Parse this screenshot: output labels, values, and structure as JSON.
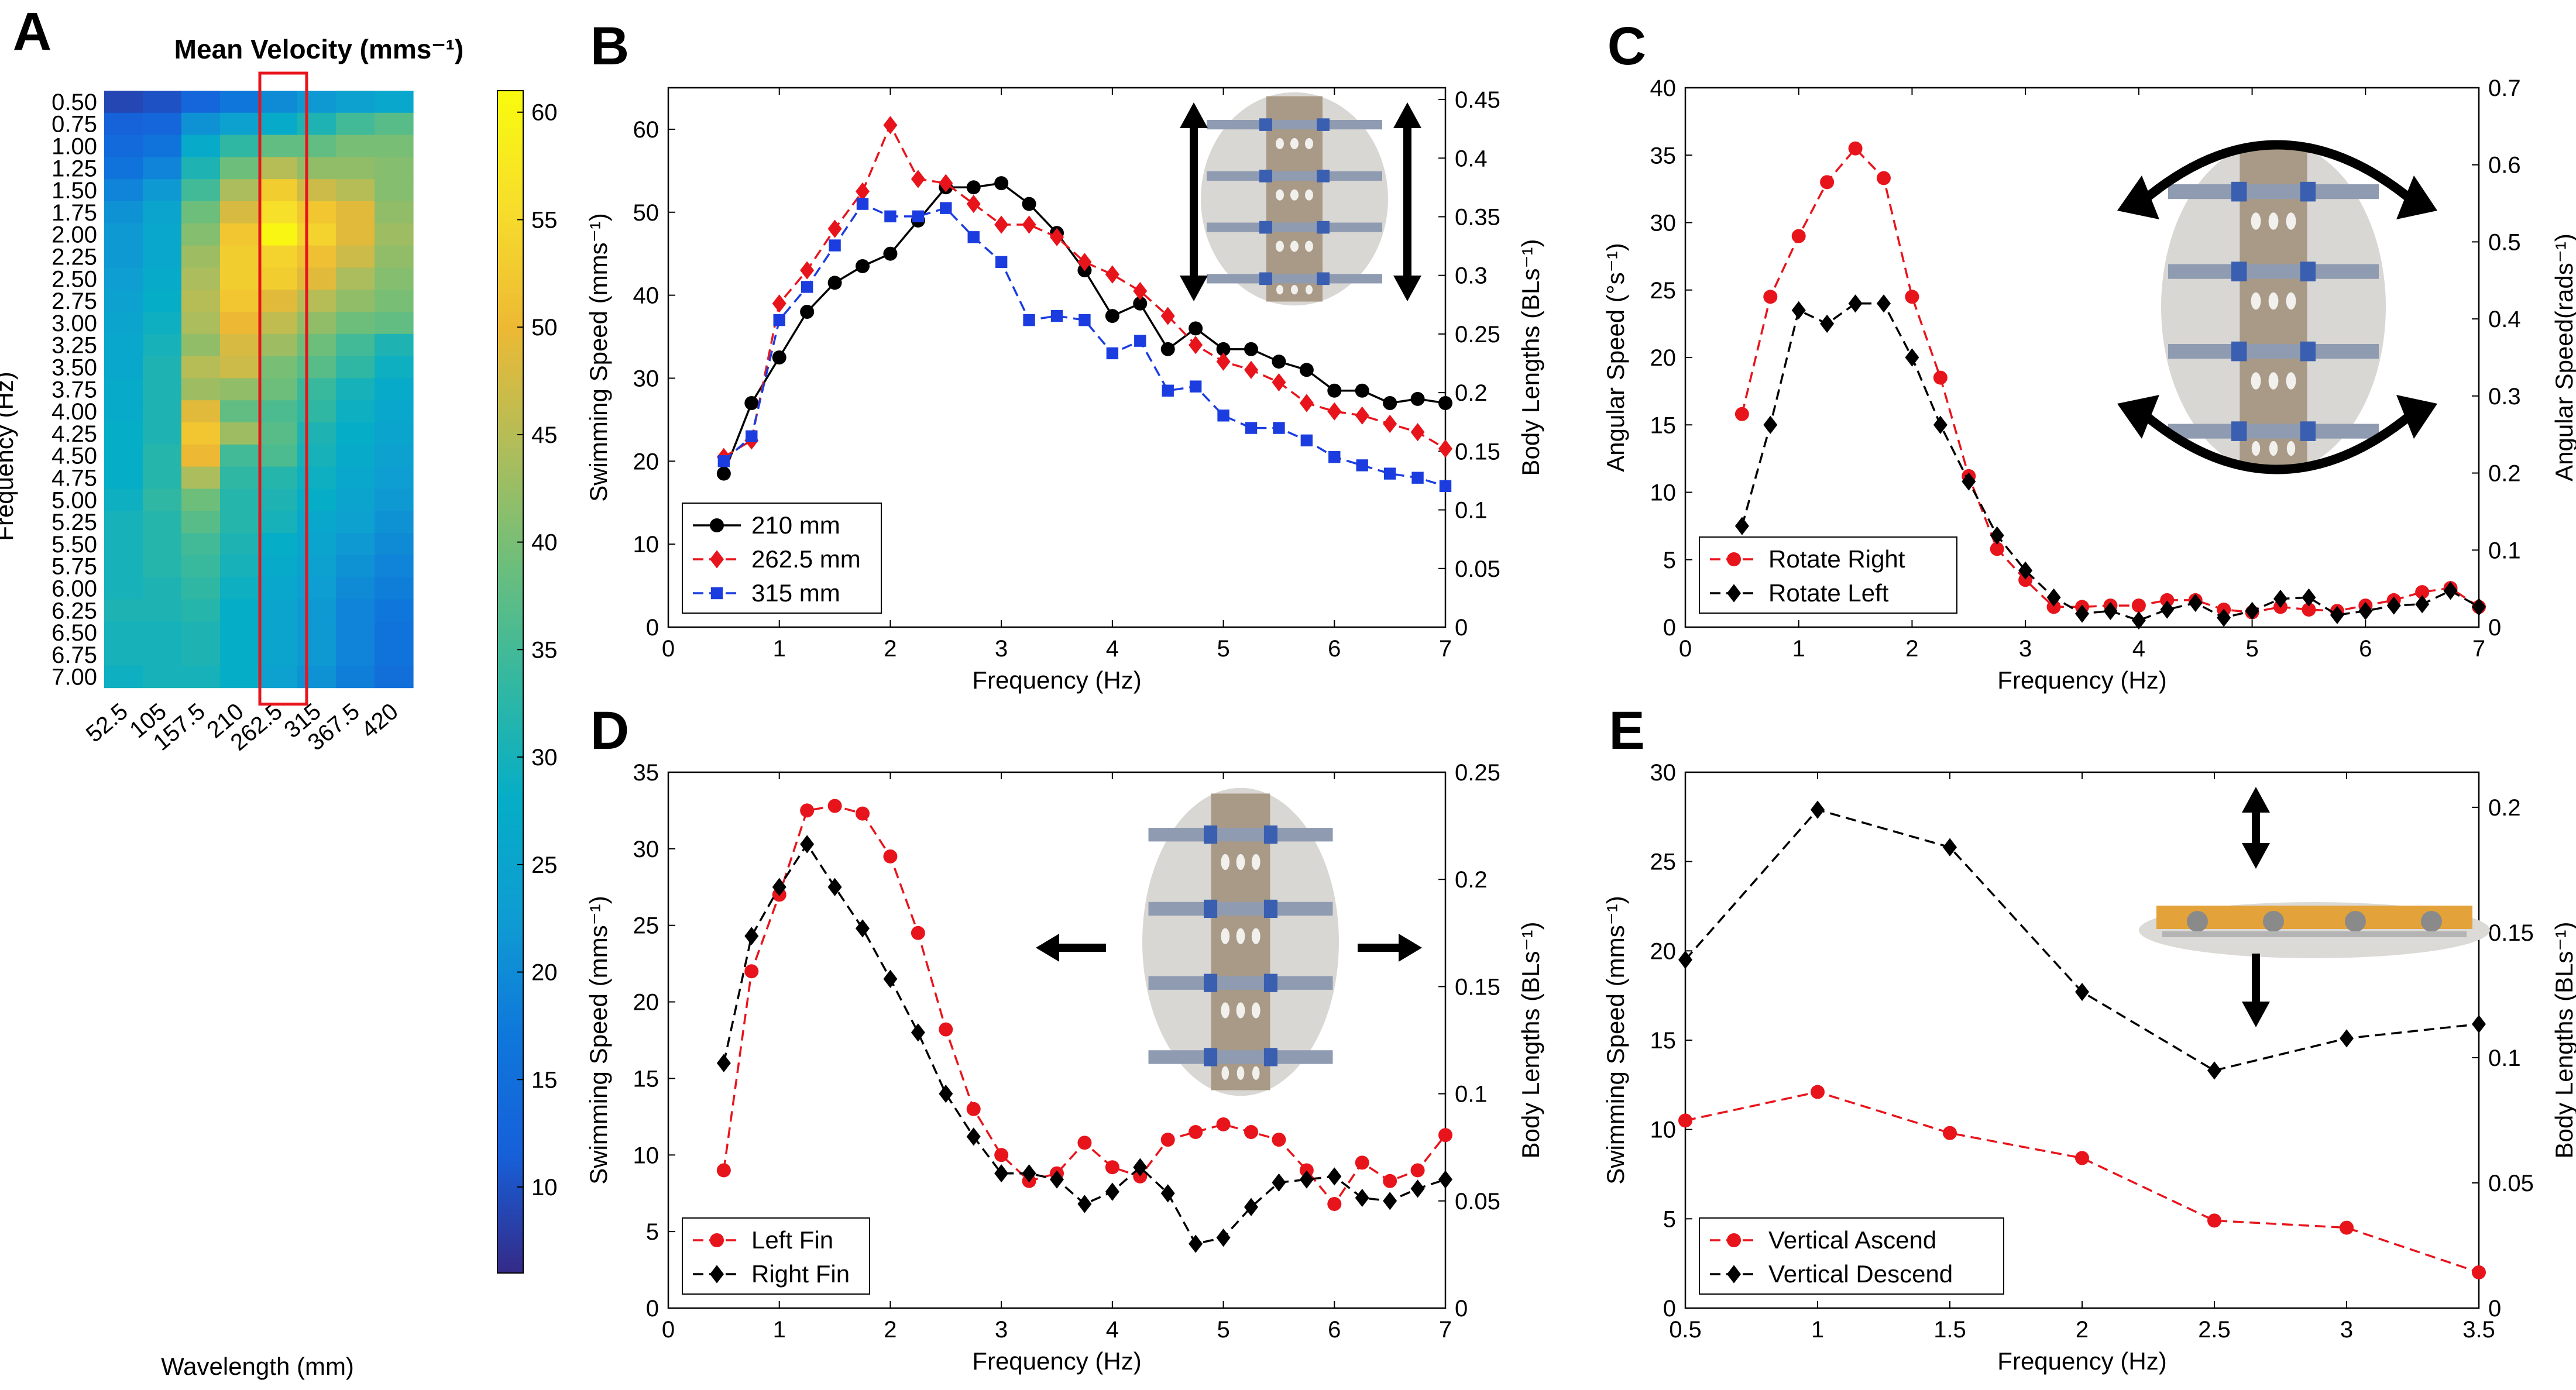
{
  "chart_data": [
    {
      "id": "A",
      "type": "heatmap",
      "panel_label": "A",
      "title": "Mean Velocity (mms⁻¹)",
      "xlabel": "Wavelength (mm)",
      "ylabel": "Frequency (Hz)",
      "x_ticks": [
        "52.5",
        "105",
        "157.5",
        "210",
        "262.5",
        "315",
        "367.5",
        "420"
      ],
      "y_ticks": [
        "0.50",
        "0.75",
        "1.00",
        "1.25",
        "1.50",
        "1.75",
        "2.00",
        "2.25",
        "2.50",
        "2.75",
        "3.00",
        "3.25",
        "3.50",
        "3.75",
        "4.00",
        "4.25",
        "4.50",
        "4.75",
        "5.00",
        "5.25",
        "5.50",
        "5.75",
        "6.00",
        "6.25",
        "6.50",
        "6.75",
        "7.00"
      ],
      "colorbar_ticks": [
        "10",
        "15",
        "20",
        "25",
        "30",
        "35",
        "40",
        "45",
        "50",
        "55",
        "60"
      ],
      "colorbar_range": [
        6,
        61
      ],
      "highlight_column": "262.5",
      "values": [
        [
          9,
          10,
          13,
          17,
          20,
          22,
          24,
          26
        ],
        [
          12,
          13,
          21,
          24,
          27,
          31,
          35,
          37
        ],
        [
          14,
          16,
          27,
          33,
          38,
          38,
          40,
          40
        ],
        [
          16,
          19,
          31,
          39,
          45,
          42,
          42,
          41
        ],
        [
          19,
          22,
          35,
          44,
          53,
          47,
          45,
          41
        ],
        [
          21,
          25,
          39,
          48,
          56,
          52,
          49,
          42
        ],
        [
          22,
          26,
          41,
          52,
          60,
          54,
          49,
          43
        ],
        [
          22,
          26,
          43,
          53,
          54,
          51,
          47,
          42
        ],
        [
          23,
          27,
          44,
          53,
          53,
          49,
          44,
          41
        ],
        [
          24,
          28,
          45,
          52,
          49,
          45,
          42,
          40
        ],
        [
          25,
          29,
          44,
          50,
          46,
          42,
          39,
          38
        ],
        [
          26,
          30,
          42,
          48,
          43,
          39,
          35,
          31
        ],
        [
          26,
          31,
          45,
          47,
          40,
          37,
          33,
          29
        ],
        [
          27,
          31,
          43,
          42,
          39,
          34,
          30,
          27
        ],
        [
          27,
          31,
          49,
          38,
          36,
          33,
          29,
          26
        ],
        [
          28,
          31,
          52,
          43,
          37,
          31,
          28,
          25
        ],
        [
          28,
          32,
          50,
          35,
          36,
          30,
          27,
          24
        ],
        [
          28,
          32,
          44,
          33,
          32,
          29,
          26,
          23
        ],
        [
          29,
          33,
          39,
          32,
          31,
          28,
          25,
          22
        ],
        [
          30,
          32,
          37,
          32,
          30,
          26,
          24,
          21
        ],
        [
          30,
          32,
          35,
          31,
          28,
          25,
          22,
          20
        ],
        [
          30,
          32,
          34,
          30,
          27,
          24,
          21,
          19
        ],
        [
          30,
          31,
          33,
          29,
          26,
          23,
          20,
          18
        ],
        [
          31,
          31,
          32,
          28,
          25,
          22,
          19,
          17
        ],
        [
          30,
          30,
          31,
          28,
          25,
          22,
          19,
          16
        ],
        [
          30,
          30,
          31,
          28,
          25,
          22,
          19,
          16
        ],
        [
          29,
          30,
          30,
          28,
          24,
          21,
          18,
          15
        ]
      ]
    },
    {
      "id": "B",
      "type": "line",
      "panel_label": "B",
      "xlabel": "Frequency (Hz)",
      "ylabel": "Swimming Speed (mms⁻¹)",
      "y2label": "Body Lengths (BLs⁻¹)",
      "xlim": [
        0,
        7
      ],
      "ylim": [
        0,
        65
      ],
      "y2lim": [
        0,
        0.46
      ],
      "x_ticks": [
        0,
        1,
        2,
        3,
        4,
        5,
        6,
        7
      ],
      "y_ticks": [
        0,
        10,
        20,
        30,
        40,
        50,
        60
      ],
      "y2_ticks": [
        "0",
        "0.05",
        "0.1",
        "0.15",
        "0.2",
        "0.25",
        "0.3",
        "0.35",
        "0.4",
        "0.45"
      ],
      "legend_position": "lower-left",
      "series": [
        {
          "name": "210 mm",
          "color": "#000000",
          "dash": false,
          "marker": "circle",
          "x": [
            0.5,
            0.75,
            1,
            1.25,
            1.5,
            1.75,
            2,
            2.25,
            2.5,
            2.75,
            3,
            3.25,
            3.5,
            3.75,
            4,
            4.25,
            4.5,
            4.75,
            5,
            5.25,
            5.5,
            5.75,
            6,
            6.25,
            6.5,
            6.75,
            7
          ],
          "y": [
            18.5,
            27,
            32.5,
            38,
            41.5,
            43.5,
            45,
            49,
            53,
            53,
            53.5,
            51,
            47.5,
            43,
            37.5,
            39,
            33.5,
            36,
            33.5,
            33.5,
            32,
            31,
            28.5,
            28.5,
            27,
            27.5,
            27
          ]
        },
        {
          "name": "262.5 mm",
          "color": "#e8141c",
          "dash": true,
          "marker": "diamond",
          "x": [
            0.5,
            0.75,
            1,
            1.25,
            1.5,
            1.75,
            2,
            2.25,
            2.5,
            2.75,
            3,
            3.25,
            3.5,
            3.75,
            4,
            4.25,
            4.5,
            4.75,
            5,
            5.25,
            5.5,
            5.75,
            6,
            6.25,
            6.5,
            6.75,
            7
          ],
          "y": [
            20.5,
            22.5,
            39,
            43,
            48,
            52.5,
            60.5,
            54,
            53.5,
            51,
            48.5,
            48.5,
            47,
            44,
            42.5,
            40.5,
            37.5,
            34,
            32,
            31,
            29.5,
            27,
            26,
            25.5,
            24.5,
            23.5,
            21.5
          ]
        },
        {
          "name": "315 mm",
          "color": "#1b3de0",
          "dash": true,
          "marker": "square",
          "x": [
            0.5,
            0.75,
            1,
            1.25,
            1.5,
            1.75,
            2,
            2.25,
            2.5,
            2.75,
            3,
            3.25,
            3.5,
            3.75,
            4,
            4.25,
            4.5,
            4.75,
            5,
            5.25,
            5.5,
            5.75,
            6,
            6.25,
            6.5,
            6.75,
            7
          ],
          "y": [
            20,
            23,
            37,
            41,
            46,
            51,
            49.5,
            49.5,
            50.5,
            47,
            44,
            37,
            37.5,
            37,
            33,
            34.5,
            28.5,
            29,
            25.5,
            24,
            24,
            22.5,
            20.5,
            19.5,
            18.5,
            18,
            17
          ]
        }
      ]
    },
    {
      "id": "C",
      "type": "line",
      "panel_label": "C",
      "xlabel": "Frequency (Hz)",
      "ylabel": "Angular Speed (°s⁻¹)",
      "y2label": "Angular Speed(rads⁻¹)",
      "xlim": [
        0,
        7
      ],
      "ylim": [
        0,
        40
      ],
      "y2lim": [
        0,
        0.7
      ],
      "x_ticks": [
        0,
        1,
        2,
        3,
        4,
        5,
        6,
        7
      ],
      "y_ticks": [
        0,
        5,
        10,
        15,
        20,
        25,
        30,
        35,
        40
      ],
      "y2_ticks": [
        "0",
        "0.1",
        "0.2",
        "0.3",
        "0.4",
        "0.5",
        "0.6",
        "0.7"
      ],
      "legend_position": "lower-left",
      "series": [
        {
          "name": "Rotate Right",
          "color": "#e8141c",
          "dash": true,
          "marker": "circle",
          "x": [
            0.5,
            0.75,
            1,
            1.25,
            1.5,
            1.75,
            2,
            2.25,
            2.5,
            2.75,
            3,
            3.25,
            3.5,
            3.75,
            4,
            4.25,
            4.5,
            4.75,
            5,
            5.25,
            5.5,
            5.75,
            6,
            6.25,
            6.5,
            6.75,
            7
          ],
          "y": [
            15.8,
            24.5,
            29,
            33,
            35.5,
            33.3,
            24.5,
            18.5,
            11.2,
            5.8,
            3.5,
            1.5,
            1.5,
            1.6,
            1.6,
            2,
            2,
            1.3,
            1.1,
            1.5,
            1.3,
            1.2,
            1.6,
            2,
            2.6,
            2.9,
            1.5
          ]
        },
        {
          "name": "Rotate Left",
          "color": "#000000",
          "dash": true,
          "marker": "diamond",
          "x": [
            0.5,
            0.75,
            1,
            1.25,
            1.5,
            1.75,
            2,
            2.25,
            2.5,
            2.75,
            3,
            3.25,
            3.5,
            3.75,
            4,
            4.25,
            4.5,
            4.75,
            5,
            5.25,
            5.5,
            5.75,
            6,
            6.25,
            6.5,
            6.75,
            7
          ],
          "y": [
            7.5,
            15,
            23.5,
            22.5,
            24,
            24,
            20,
            15,
            10.8,
            6.8,
            4.2,
            2.2,
            1,
            1.2,
            0.5,
            1.3,
            1.8,
            0.7,
            1.2,
            2.1,
            2.2,
            0.9,
            1.2,
            1.6,
            1.7,
            2.7,
            1.5
          ]
        }
      ]
    },
    {
      "id": "D",
      "type": "line",
      "panel_label": "D",
      "xlabel": "Frequency (Hz)",
      "ylabel": "Swimming Speed (mms⁻¹)",
      "y2label": "Body Lengths (BLs⁻¹)",
      "xlim": [
        0,
        7
      ],
      "ylim": [
        0,
        35
      ],
      "y2lim": [
        0,
        0.25
      ],
      "x_ticks": [
        0,
        1,
        2,
        3,
        4,
        5,
        6,
        7
      ],
      "y_ticks": [
        0,
        5,
        10,
        15,
        20,
        25,
        30,
        35
      ],
      "y2_ticks": [
        "0",
        "0.05",
        "0.1",
        "0.15",
        "0.2",
        "0.25"
      ],
      "legend_position": "lower-left",
      "series": [
        {
          "name": "Left Fin",
          "color": "#e8141c",
          "dash": true,
          "marker": "circle",
          "x": [
            0.5,
            0.75,
            1,
            1.25,
            1.5,
            1.75,
            2,
            2.25,
            2.5,
            2.75,
            3,
            3.25,
            3.5,
            3.75,
            4,
            4.25,
            4.5,
            4.75,
            5,
            5.25,
            5.5,
            5.75,
            6,
            6.25,
            6.5,
            6.75,
            7
          ],
          "y": [
            9,
            22,
            27,
            32.5,
            32.8,
            32.3,
            29.5,
            24.5,
            18.2,
            13,
            10,
            8.3,
            8.8,
            10.8,
            9.2,
            8.6,
            11,
            11.5,
            12,
            11.5,
            11,
            9,
            6.8,
            9.5,
            8.3,
            9,
            11.3
          ]
        },
        {
          "name": "Right Fin",
          "color": "#000000",
          "dash": true,
          "marker": "diamond",
          "x": [
            0.5,
            0.75,
            1,
            1.25,
            1.5,
            1.75,
            2,
            2.25,
            2.5,
            2.75,
            3,
            3.25,
            3.5,
            3.75,
            4,
            4.25,
            4.5,
            4.75,
            5,
            5.25,
            5.5,
            5.75,
            6,
            6.25,
            6.5,
            6.75,
            7
          ],
          "y": [
            16,
            24.3,
            27.5,
            30.3,
            27.5,
            24.8,
            21.5,
            18,
            14,
            11.2,
            8.8,
            8.8,
            8.4,
            6.8,
            7.6,
            9.2,
            7.5,
            4.2,
            4.6,
            6.6,
            8.2,
            8.4,
            8.6,
            7.2,
            7,
            7.8,
            8.4
          ]
        }
      ]
    },
    {
      "id": "E",
      "type": "line",
      "panel_label": "E",
      "xlabel": "Frequency (Hz)",
      "ylabel": "Swimming Speed (mms⁻¹)",
      "y2label": "Body Lengths (BLs⁻¹)",
      "xlim": [
        0.5,
        3.5
      ],
      "ylim": [
        0,
        30
      ],
      "y2lim": [
        0,
        0.214
      ],
      "x_ticks": [
        "0.5",
        "1",
        "1.5",
        "2",
        "2.5",
        "3",
        "3.5"
      ],
      "y_ticks": [
        0,
        5,
        10,
        15,
        20,
        25,
        30
      ],
      "y2_ticks": [
        "0",
        "0.05",
        "0.1",
        "0.15",
        "0.2"
      ],
      "legend_position": "lower-left",
      "series": [
        {
          "name": "Vertical Ascend",
          "color": "#e8141c",
          "dash": true,
          "marker": "circle",
          "x": [
            0.5,
            1,
            1.5,
            2,
            2.5,
            3,
            3.5
          ],
          "y": [
            10.5,
            12.1,
            9.8,
            8.4,
            4.9,
            4.5,
            2
          ]
        },
        {
          "name": "Vertical Descend",
          "color": "#000000",
          "dash": true,
          "marker": "diamond",
          "x": [
            0.5,
            1,
            1.5,
            2,
            2.5,
            3,
            3.5
          ],
          "y": [
            19.5,
            27.9,
            25.8,
            17.7,
            13.3,
            15.1,
            15.9
          ]
        }
      ]
    }
  ]
}
